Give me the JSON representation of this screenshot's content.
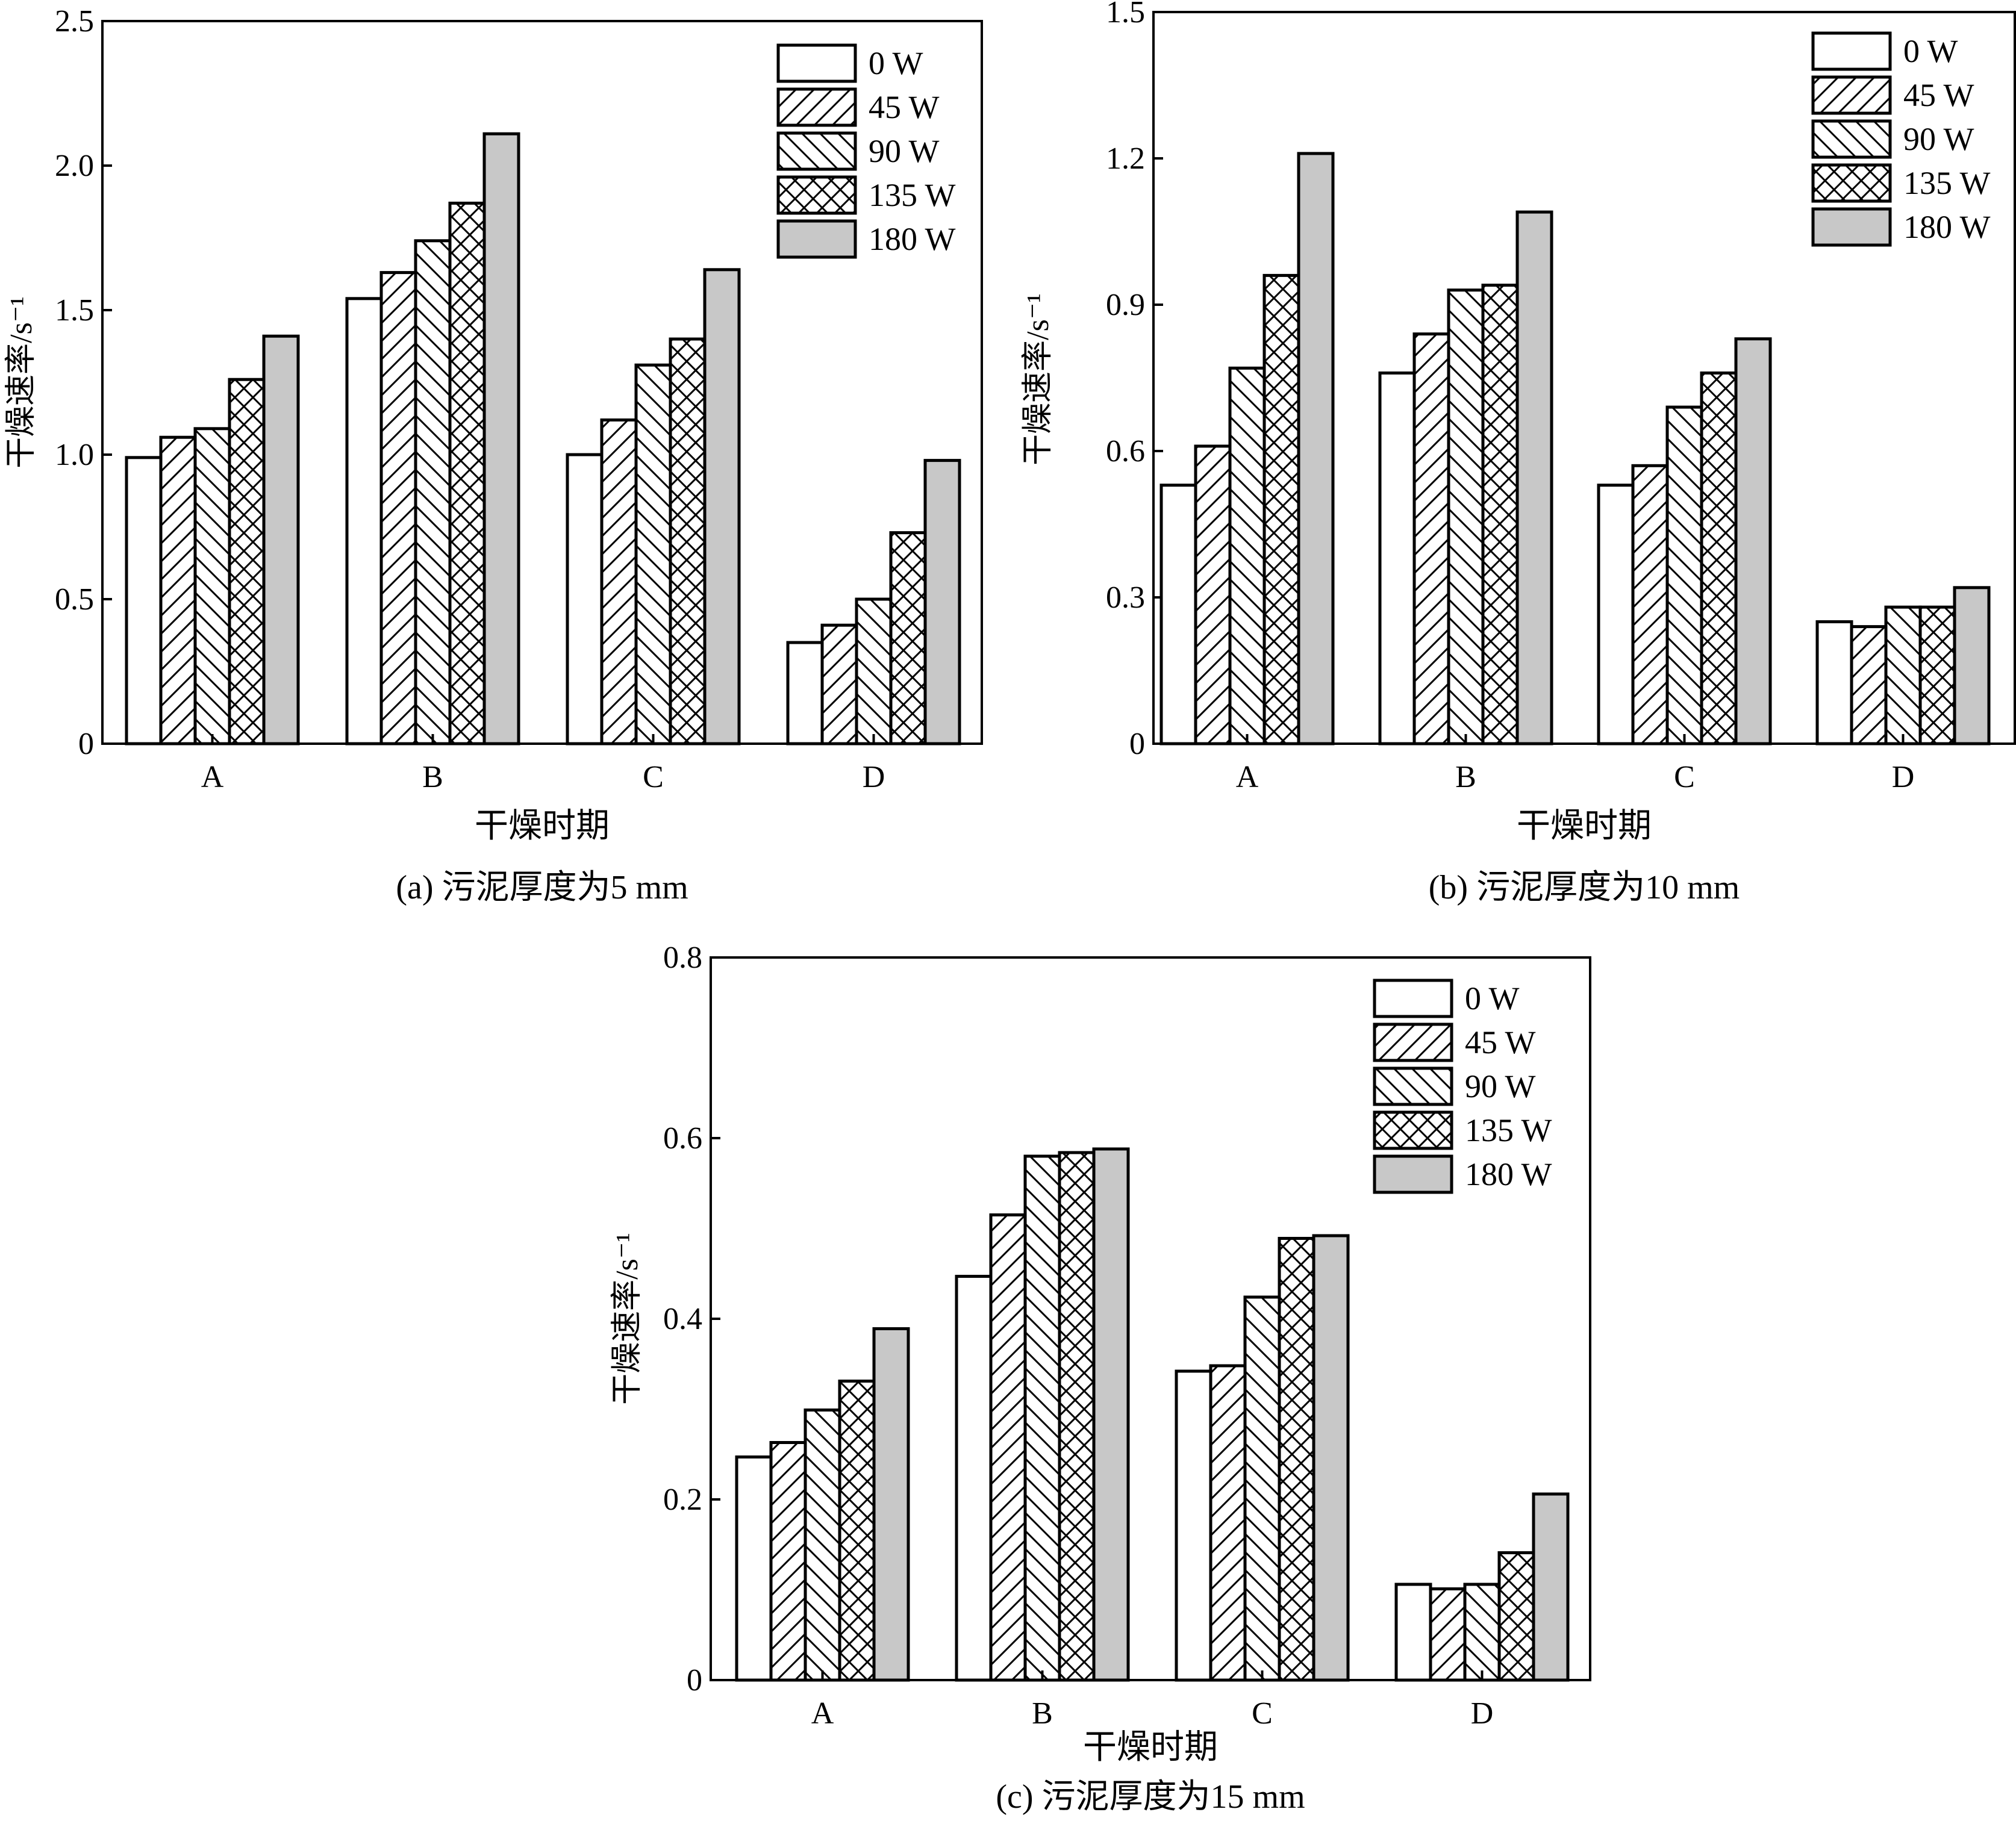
{
  "legend_labels": [
    "0 W",
    "45 W",
    "90 W",
    "135 W",
    "180 W"
  ],
  "chart_data": [
    {
      "type": "bar",
      "caption": "(a) 污泥厚度为5 mm",
      "xlabel": "干燥时期",
      "ylabel": "干燥速率/s⁻¹",
      "categories": [
        "A",
        "B",
        "C",
        "D"
      ],
      "ylim": [
        0,
        2.5
      ],
      "yticks": [
        "0",
        "0.5",
        "1.0",
        "1.5",
        "2.0",
        "2.5"
      ],
      "legend": "top-right",
      "series": [
        {
          "name": "0 W",
          "values": [
            0.99,
            1.54,
            1.0,
            0.35
          ]
        },
        {
          "name": "45 W",
          "values": [
            1.06,
            1.63,
            1.12,
            0.41
          ]
        },
        {
          "name": "90 W",
          "values": [
            1.09,
            1.74,
            1.31,
            0.5
          ]
        },
        {
          "name": "135 W",
          "values": [
            1.26,
            1.87,
            1.4,
            0.73
          ]
        },
        {
          "name": "180 W",
          "values": [
            1.41,
            2.11,
            1.64,
            0.98
          ]
        }
      ]
    },
    {
      "type": "bar",
      "caption": "(b) 污泥厚度为10 mm",
      "xlabel": "干燥时期",
      "ylabel": "干燥速率/s⁻¹",
      "categories": [
        "A",
        "B",
        "C",
        "D"
      ],
      "ylim": [
        0,
        1.5
      ],
      "yticks": [
        "0",
        "0.3",
        "0.6",
        "0.9",
        "1.2",
        "1.5"
      ],
      "legend": "top-right",
      "series": [
        {
          "name": "0 W",
          "values": [
            0.53,
            0.76,
            0.53,
            0.25
          ]
        },
        {
          "name": "45 W",
          "values": [
            0.61,
            0.84,
            0.57,
            0.24
          ]
        },
        {
          "name": "90 W",
          "values": [
            0.77,
            0.93,
            0.69,
            0.28
          ]
        },
        {
          "name": "135 W",
          "values": [
            0.96,
            0.94,
            0.76,
            0.28
          ]
        },
        {
          "name": "180 W",
          "values": [
            1.21,
            1.09,
            0.83,
            0.32
          ]
        }
      ]
    },
    {
      "type": "bar",
      "caption": "(c) 污泥厚度为15 mm",
      "xlabel": "干燥时期",
      "ylabel": "干燥速率/s⁻¹",
      "categories": [
        "A",
        "B",
        "C",
        "D"
      ],
      "ylim": [
        0,
        0.8
      ],
      "yticks": [
        "0",
        "0.2",
        "0.4",
        "0.6",
        "0.8"
      ],
      "legend": "top-right",
      "series": [
        {
          "name": "0 W",
          "values": [
            0.247,
            0.447,
            0.342,
            0.106
          ]
        },
        {
          "name": "45 W",
          "values": [
            0.263,
            0.515,
            0.348,
            0.101
          ]
        },
        {
          "name": "90 W",
          "values": [
            0.299,
            0.58,
            0.424,
            0.106
          ]
        },
        {
          "name": "135 W",
          "values": [
            0.331,
            0.584,
            0.489,
            0.141
          ]
        },
        {
          "name": "180 W",
          "values": [
            0.389,
            0.588,
            0.492,
            0.206
          ]
        }
      ]
    }
  ]
}
